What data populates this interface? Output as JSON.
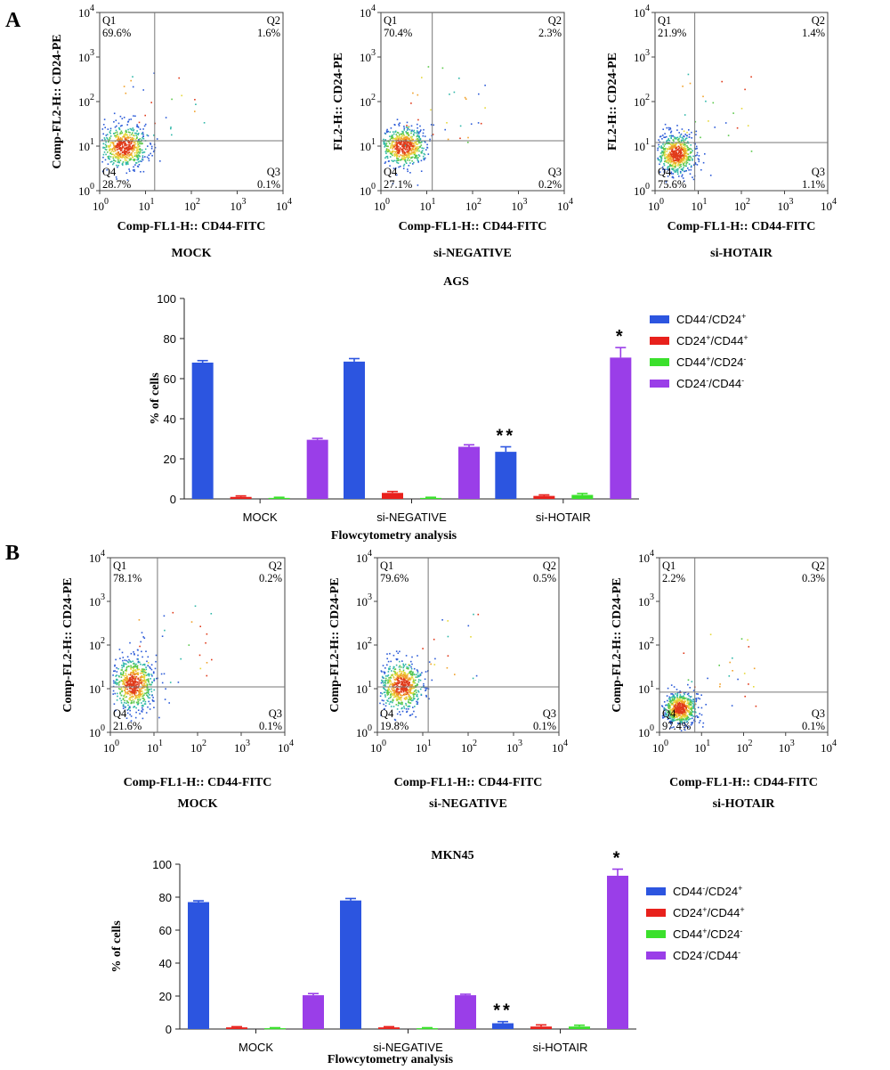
{
  "panels": [
    {
      "letter": "A",
      "flow_plots": [
        {
          "sample": "MOCK",
          "ylabel": "Comp-FL2-H:: CD24-PE",
          "xlabel": "Comp-FL1-H:: CD44-FITC",
          "quadrants": {
            "q1": [
              "Q1",
              "69.6%"
            ],
            "q2": [
              "Q2",
              "1.6%"
            ],
            "q3": [
              "Q3",
              "0.1%"
            ],
            "q4": [
              "Q4",
              "28.7%"
            ]
          }
        },
        {
          "sample": "si-NEGATIVE",
          "ylabel": "FL2-H:: CD24-PE",
          "xlabel": "Comp-FL1-H:: CD44-FITC",
          "quadrants": {
            "q1": [
              "Q1",
              "70.4%"
            ],
            "q2": [
              "Q2",
              "2.3%"
            ],
            "q3": [
              "Q3",
              "0.2%"
            ],
            "q4": [
              "Q4",
              "27.1%"
            ]
          }
        },
        {
          "sample": "si-HOTAIR",
          "ylabel": "FL2-H:: CD24-PE",
          "xlabel": "Comp-FL1-H:: CD44-FITC",
          "quadrants": {
            "q1": [
              "Q1",
              "21.9%"
            ],
            "q2": [
              "Q2",
              "1.4%"
            ],
            "q3": [
              "Q3",
              "1.1%"
            ],
            "q4": [
              "Q4",
              "75.6%"
            ]
          }
        }
      ],
      "bar_chart": {
        "title": "AGS",
        "ylabel": "% of cells",
        "xlabel": "Flowcytometry analysis",
        "yticks": [
          "0",
          "20",
          "40",
          "60",
          "80",
          "100"
        ],
        "significance": {
          "si-HOTAIR": {
            "CD44-/CD24+": "**",
            "CD24-/CD44-": "*"
          }
        }
      }
    },
    {
      "letter": "B",
      "flow_plots": [
        {
          "sample": "MOCK",
          "ylabel": "Comp-FL2-H:: CD24-PE",
          "xlabel": "Comp-FL1-H:: CD44-FITC",
          "quadrants": {
            "q1": [
              "Q1",
              "78.1%"
            ],
            "q2": [
              "Q2",
              "0.2%"
            ],
            "q3": [
              "Q3",
              "0.1%"
            ],
            "q4": [
              "Q4",
              "21.6%"
            ]
          }
        },
        {
          "sample": "si-NEGATIVE",
          "ylabel": "Comp-FL2-H:: CD24-PE",
          "xlabel": "Comp-FL1-H:: CD44-FITC",
          "quadrants": {
            "q1": [
              "Q1",
              "79.6%"
            ],
            "q2": [
              "Q2",
              "0.5%"
            ],
            "q3": [
              "Q3",
              "0.1%"
            ],
            "q4": [
              "Q4",
              "19.8%"
            ]
          }
        },
        {
          "sample": "si-HOTAIR",
          "ylabel": "Comp-FL2-H:: CD24-PE",
          "xlabel": "Comp-FL1-H:: CD44-FITC",
          "quadrants": {
            "q1": [
              "Q1",
              "2.2%"
            ],
            "q2": [
              "Q2",
              "0.3%"
            ],
            "q3": [
              "Q3",
              "0.1%"
            ],
            "q4": [
              "Q4",
              "97.4%"
            ]
          }
        }
      ],
      "bar_chart": {
        "title": "MKN45",
        "ylabel": "% of cells",
        "xlabel": "Flowcytometry analysis",
        "yticks": [
          "0",
          "20",
          "40",
          "60",
          "80",
          "100"
        ],
        "significance": {
          "si-HOTAIR": {
            "CD44-/CD24+": "**",
            "CD24-/CD44-": "*"
          }
        }
      }
    }
  ],
  "legend": [
    {
      "name": "CD44-/CD24+",
      "base1": "CD44",
      "sup1": "-",
      "base2": "/CD24",
      "sup2": "+",
      "color": "#2c55e0"
    },
    {
      "name": "CD24+/CD44+",
      "base1": "CD24",
      "sup1": "+",
      "base2": "/CD44",
      "sup2": "+",
      "color": "#e8211c"
    },
    {
      "name": "CD44+/CD24-",
      "base1": "CD44",
      "sup1": "+",
      "base2": "/CD24",
      "sup2": "-",
      "color": "#3be02c"
    },
    {
      "name": "CD24-/CD44-",
      "base1": "CD24",
      "sup1": "-",
      "base2": "/CD44",
      "sup2": "-",
      "color": "#9a3ee8"
    }
  ],
  "log_axis_ticks": {
    "base": "10",
    "exponents": [
      "0",
      "1",
      "2",
      "3",
      "4"
    ]
  },
  "chart_data": [
    {
      "type": "bar",
      "title": "AGS",
      "categories": [
        "MOCK",
        "si-NEGATIVE",
        "si-HOTAIR"
      ],
      "series": [
        {
          "name": "CD44-/CD24+",
          "values": [
            68,
            68.5,
            23.5
          ],
          "errors": [
            1,
            1.5,
            2.5
          ]
        },
        {
          "name": "CD24+/CD44+",
          "values": [
            1,
            3,
            1.5
          ],
          "errors": [
            0.5,
            0.7,
            0.5
          ]
        },
        {
          "name": "CD44+/CD24-",
          "values": [
            0.5,
            0.5,
            2
          ],
          "errors": [
            0.3,
            0.3,
            0.7
          ]
        },
        {
          "name": "CD24-/CD44-",
          "values": [
            29.5,
            26,
            70.5
          ],
          "errors": [
            0.7,
            1,
            5
          ]
        }
      ],
      "xlabel": "Flowcytometry analysis",
      "ylabel": "% of cells",
      "ylim": [
        0,
        100
      ],
      "legend_position": "right"
    },
    {
      "type": "bar",
      "title": "MKN45",
      "categories": [
        "MOCK",
        "si-NEGATIVE",
        "si-HOTAIR"
      ],
      "series": [
        {
          "name": "CD44-/CD24+",
          "values": [
            77,
            78,
            3.5
          ],
          "errors": [
            0.8,
            1.2,
            1
          ]
        },
        {
          "name": "CD24+/CD44+",
          "values": [
            1,
            1,
            1.5
          ],
          "errors": [
            0.4,
            0.4,
            1
          ]
        },
        {
          "name": "CD44+/CD24-",
          "values": [
            0.5,
            0.5,
            1.5
          ],
          "errors": [
            0.3,
            0.3,
            0.8
          ]
        },
        {
          "name": "CD24-/CD44-",
          "values": [
            20.5,
            20.5,
            93
          ],
          "errors": [
            1,
            0.6,
            4
          ]
        }
      ],
      "xlabel": "Flowcytometry analysis",
      "ylabel": "% of cells",
      "ylim": [
        0,
        100
      ],
      "legend_position": "right"
    },
    {
      "type": "scatter",
      "title": "",
      "xlabel": "Comp-FL1-H:: CD44-FITC",
      "ylabel": "CD24-PE",
      "xscale": "log",
      "yscale": "log",
      "xlim": [
        1,
        10000
      ],
      "ylim": [
        1,
        10000
      ],
      "samples": [
        "AGS MOCK",
        "AGS si-NEGATIVE",
        "AGS si-HOTAIR",
        "MKN45 MOCK",
        "MKN45 si-NEGATIVE",
        "MKN45 si-HOTAIR"
      ],
      "q1_percent": [
        69.6,
        70.4,
        21.9,
        78.1,
        79.6,
        2.2
      ],
      "q4_percent": [
        28.7,
        27.1,
        75.6,
        21.6,
        19.8,
        97.4
      ]
    }
  ]
}
